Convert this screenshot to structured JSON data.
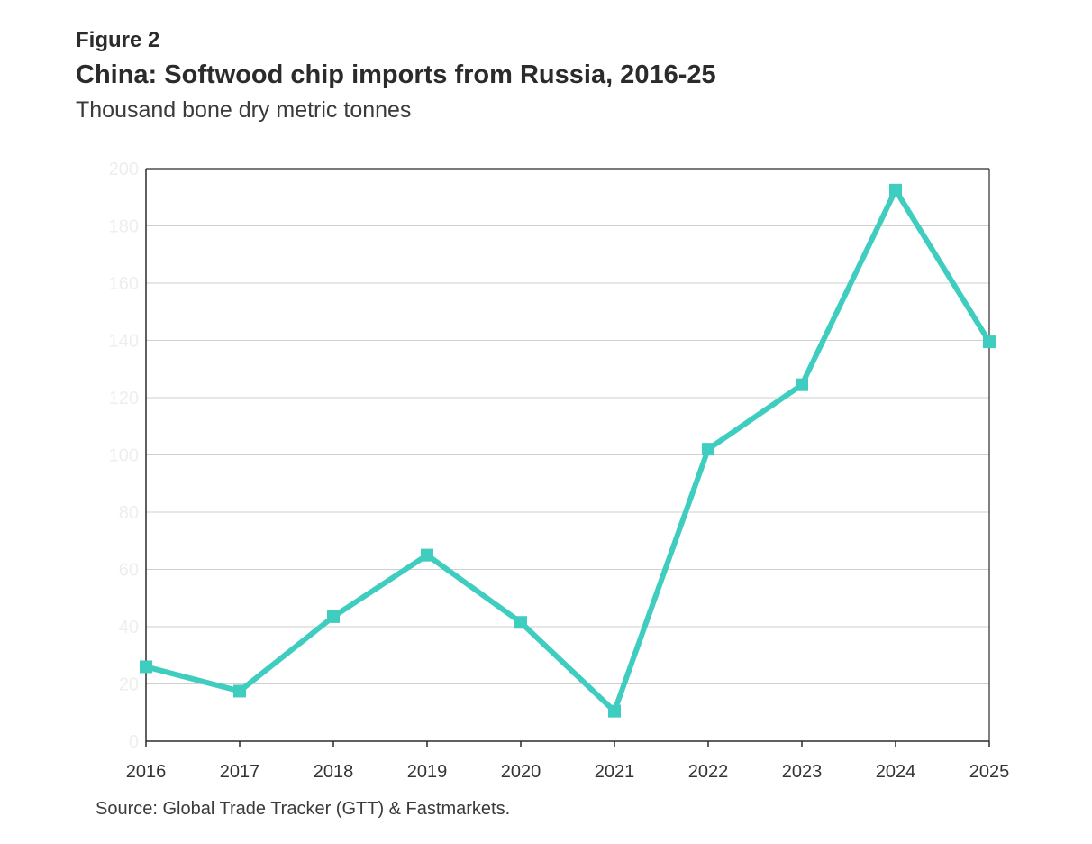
{
  "figure": {
    "label": "Figure 2",
    "title": "China: Softwood chip imports from Russia, 2016-25",
    "subtitle": "Thousand bone dry metric tonnes",
    "source": "Source: Global Trade Tracker (GTT) & Fastmarkets."
  },
  "colors": {
    "series": "#3ecdbf",
    "grid": "#cfcfcf",
    "axis": "#2b2b2b",
    "ytick_text": "#eeeeee",
    "xtick_text": "#333333"
  },
  "chart_data": {
    "type": "line",
    "x": [
      "2016",
      "2017",
      "2018",
      "2019",
      "2020",
      "2021",
      "2022",
      "2023",
      "2024",
      "2025"
    ],
    "series": [
      {
        "values": [
          26,
          17.5,
          43.5,
          65,
          41.5,
          10.5,
          102,
          124.5,
          192.5,
          139.5
        ],
        "marker": "square"
      }
    ],
    "ylim": [
      0,
      200
    ],
    "yticks": [
      0,
      20,
      40,
      60,
      80,
      100,
      120,
      140,
      160,
      180,
      200
    ],
    "grid": "horizontal",
    "legend": "none"
  }
}
